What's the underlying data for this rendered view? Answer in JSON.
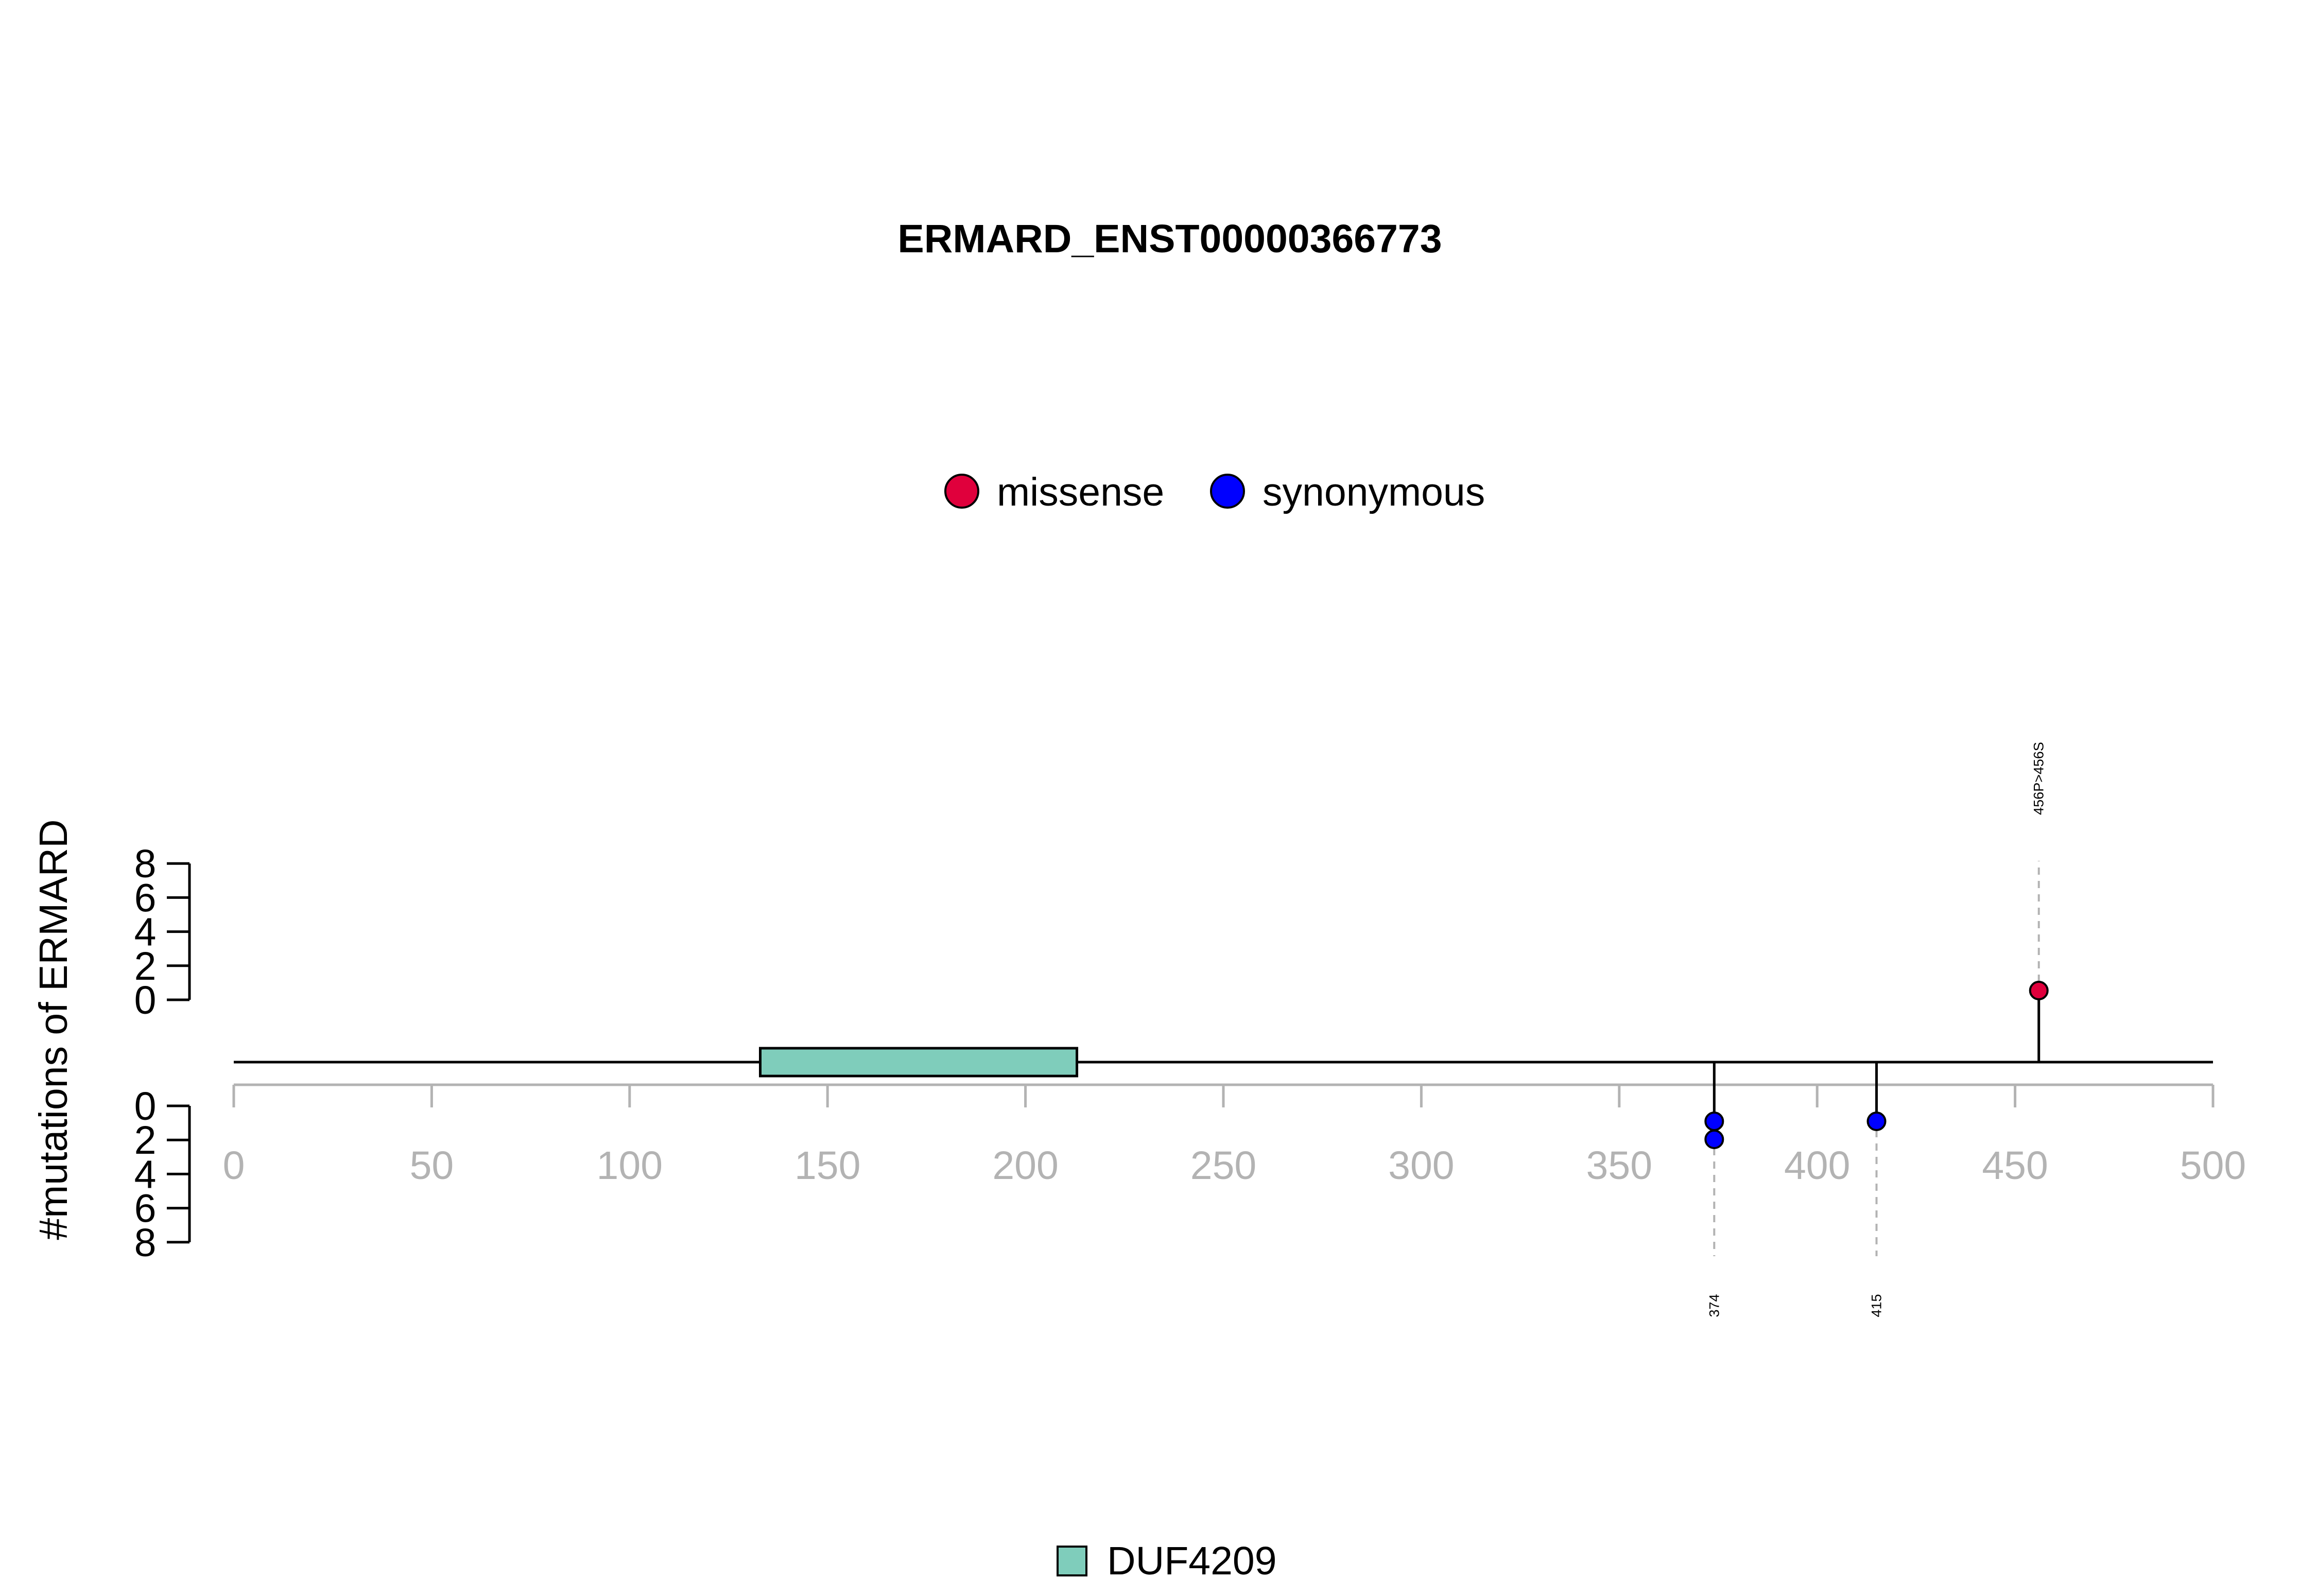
{
  "chart_data": {
    "type": "lollipop",
    "title": "ERMARD_ENST00000366773",
    "ylabel": "#mutations of ERMARD",
    "xlim": [
      0,
      500
    ],
    "x_ticks": [
      0,
      50,
      100,
      150,
      200,
      250,
      300,
      350,
      400,
      450,
      500
    ],
    "y_ticks": [
      0,
      2,
      4,
      6,
      8
    ],
    "y_tick_labels": [
      "0",
      "2",
      "4",
      "6",
      "8"
    ],
    "legend": [
      {
        "label": "missense",
        "color": "#e0003c"
      },
      {
        "label": "synonymous",
        "color": "#0000ff"
      }
    ],
    "domains": [
      {
        "name": "DUF4209",
        "start": 133,
        "end": 213,
        "color": "#7fcdbb"
      }
    ],
    "mutations_top": [
      {
        "position": 456,
        "count": 1,
        "type": "missense",
        "label": "456P>456S"
      }
    ],
    "mutations_bottom": [
      {
        "position": 374,
        "count": 2,
        "type": "synonymous",
        "label": "374"
      },
      {
        "position": 415,
        "count": 1,
        "type": "synonymous",
        "label": "415"
      }
    ]
  }
}
